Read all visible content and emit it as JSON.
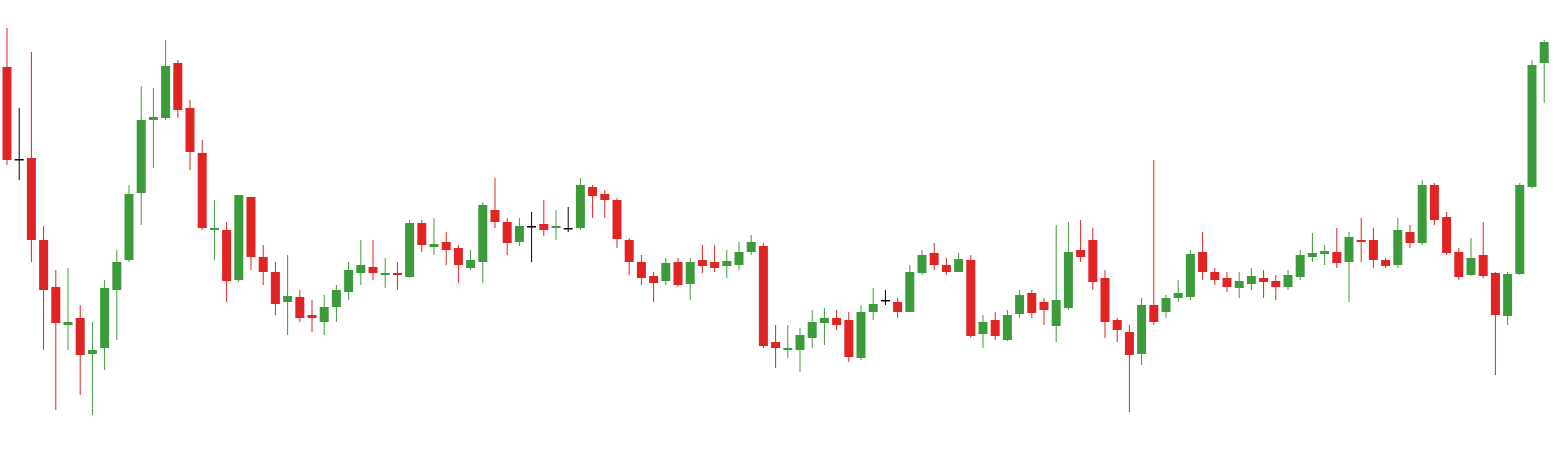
{
  "chart_data": {
    "type": "candlestick",
    "up_color": "#3c9c3c",
    "down_color": "#e02424",
    "flat_color": "#000000",
    "ylim": [
      0,
      475
    ],
    "open": [
      408,
      316,
      317,
      235,
      188,
      150,
      157,
      121,
      127,
      185,
      215,
      282,
      355,
      357,
      412,
      367,
      322,
      245,
      245,
      195,
      278,
      218,
      203,
      173,
      178,
      160,
      153,
      168,
      183,
      202,
      208,
      200,
      202,
      198,
      252,
      228,
      233,
      227,
      207,
      213,
      265,
      253,
      233,
      249,
      251,
      247,
      247,
      247,
      288,
      281,
      275,
      235,
      213,
      199,
      194,
      213,
      191,
      215,
      213,
      209,
      210,
      223,
      229,
      133,
      125,
      125,
      137,
      152,
      157,
      155,
      117,
      163,
      175,
      173,
      163,
      202,
      222,
      210,
      203,
      215,
      141,
      155,
      135,
      161,
      182,
      173,
      149,
      167,
      225,
      235,
      197,
      155,
      143,
      121,
      170,
      163,
      177,
      178,
      223,
      203,
      197,
      187,
      191,
      197,
      194,
      188,
      198,
      218,
      221,
      223,
      213,
      235,
      235,
      215,
      210,
      243,
      232,
      290,
      258,
      223,
      200,
      220,
      202,
      159,
      201,
      288,
      412
    ],
    "high": [
      447,
      367,
      423,
      249,
      205,
      207,
      170,
      153,
      195,
      225,
      290,
      389,
      387,
      435,
      415,
      375,
      335,
      275,
      253,
      280,
      278,
      230,
      213,
      220,
      185,
      175,
      180,
      190,
      213,
      235,
      235,
      217,
      213,
      255,
      255,
      257,
      243,
      230,
      225,
      273,
      297,
      257,
      257,
      263,
      275,
      265,
      268,
      297,
      290,
      285,
      277,
      237,
      220,
      203,
      217,
      217,
      217,
      230,
      230,
      225,
      233,
      240,
      232,
      150,
      150,
      147,
      165,
      167,
      165,
      163,
      170,
      187,
      185,
      177,
      210,
      225,
      232,
      217,
      222,
      220,
      160,
      163,
      165,
      185,
      185,
      177,
      250,
      253,
      255,
      247,
      205,
      157,
      150,
      177,
      315,
      180,
      195,
      225,
      243,
      207,
      203,
      203,
      207,
      205,
      200,
      205,
      225,
      242,
      230,
      247,
      243,
      257,
      247,
      217,
      257,
      250,
      295,
      292,
      263,
      227,
      237,
      253,
      203,
      203,
      292,
      415,
      435
    ],
    "low": [
      310,
      295,
      213,
      125,
      65,
      125,
      80,
      60,
      105,
      135,
      213,
      250,
      307,
      355,
      357,
      305,
      245,
      215,
      173,
      193,
      205,
      190,
      160,
      140,
      153,
      143,
      140,
      153,
      175,
      190,
      195,
      187,
      185,
      197,
      223,
      220,
      210,
      192,
      205,
      192,
      247,
      220,
      229,
      213,
      239,
      235,
      243,
      245,
      257,
      257,
      227,
      200,
      190,
      173,
      190,
      188,
      175,
      202,
      203,
      197,
      205,
      220,
      127,
      107,
      117,
      103,
      127,
      130,
      145,
      113,
      115,
      155,
      170,
      157,
      163,
      200,
      205,
      200,
      203,
      137,
      127,
      135,
      134,
      157,
      157,
      150,
      133,
      165,
      213,
      185,
      137,
      133,
      63,
      110,
      150,
      157,
      173,
      175,
      195,
      190,
      183,
      177,
      185,
      177,
      175,
      185,
      195,
      213,
      210,
      207,
      173,
      213,
      207,
      207,
      207,
      227,
      230,
      250,
      220,
      195,
      199,
      197,
      100,
      150,
      200,
      287,
      372
    ],
    "close": [
      315,
      316,
      235,
      185,
      152,
      153,
      120,
      125,
      187,
      213,
      281,
      355,
      358,
      409,
      365,
      323,
      247,
      247,
      194,
      280,
      218,
      203,
      171,
      179,
      157,
      157,
      168,
      185,
      205,
      210,
      202,
      202,
      200,
      252,
      230,
      231,
      225,
      210,
      215,
      270,
      253,
      232,
      249,
      249,
      245,
      249,
      247,
      290,
      279,
      275,
      236,
      213,
      197,
      192,
      212,
      190,
      213,
      209,
      207,
      214,
      223,
      233,
      129,
      127,
      127,
      140,
      153,
      157,
      150,
      118,
      163,
      171,
      175,
      163,
      203,
      220,
      210,
      203,
      216,
      139,
      153,
      139,
      160,
      180,
      162,
      165,
      175,
      223,
      218,
      193,
      153,
      145,
      120,
      170,
      153,
      177,
      182,
      221,
      203,
      195,
      188,
      194,
      199,
      193,
      188,
      200,
      220,
      222,
      224,
      212,
      238,
      233,
      215,
      209,
      245,
      232,
      290,
      255,
      222,
      198,
      217,
      199,
      160,
      201,
      290,
      410,
      433
    ]
  }
}
